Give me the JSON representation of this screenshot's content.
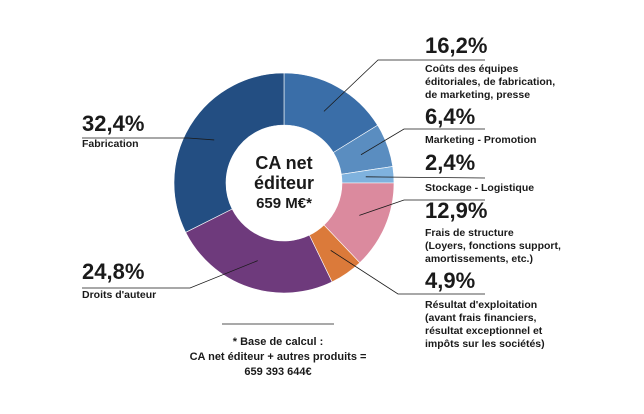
{
  "chart_data": {
    "type": "pie",
    "center_label": [
      "CA net",
      "éditeur",
      "659 M€*"
    ],
    "slices": [
      {
        "value_label": "16,2%",
        "value": 16.2,
        "label": [
          "Coûts des équipes",
          "éditoriales, de fabrication,",
          "de marketing, presse"
        ],
        "color": "#3A6EA8"
      },
      {
        "value_label": "6,4%",
        "value": 6.4,
        "label": [
          "Marketing - Promotion"
        ],
        "color": "#5A8DC0"
      },
      {
        "value_label": "2,4%",
        "value": 2.4,
        "label": [
          "Stockage - Logistique"
        ],
        "color": "#7FB2DE"
      },
      {
        "value_label": "12,9%",
        "value": 12.9,
        "label": [
          "Frais de structure",
          "(Loyers, fonctions support,",
          "amortissements, etc.)"
        ],
        "color": "#DB8A9E"
      },
      {
        "value_label": "4,9%",
        "value": 4.9,
        "label": [
          "Résultat d'exploitation",
          "(avant frais financiers,",
          "résultat exceptionnel et",
          "impôts sur les sociétés)"
        ],
        "color": "#DB7A3A"
      },
      {
        "value_label": "24,8%",
        "value": 24.8,
        "label": [
          "Droits d'auteur"
        ],
        "color": "#6E3A7C"
      },
      {
        "value_label": "32,4%",
        "value": 32.4,
        "label": [
          "Fabrication"
        ],
        "color": "#234E82"
      }
    ],
    "footnote": [
      "* Base de calcul :",
      "CA net éditeur + autres produits =",
      "659 393 644€"
    ]
  }
}
